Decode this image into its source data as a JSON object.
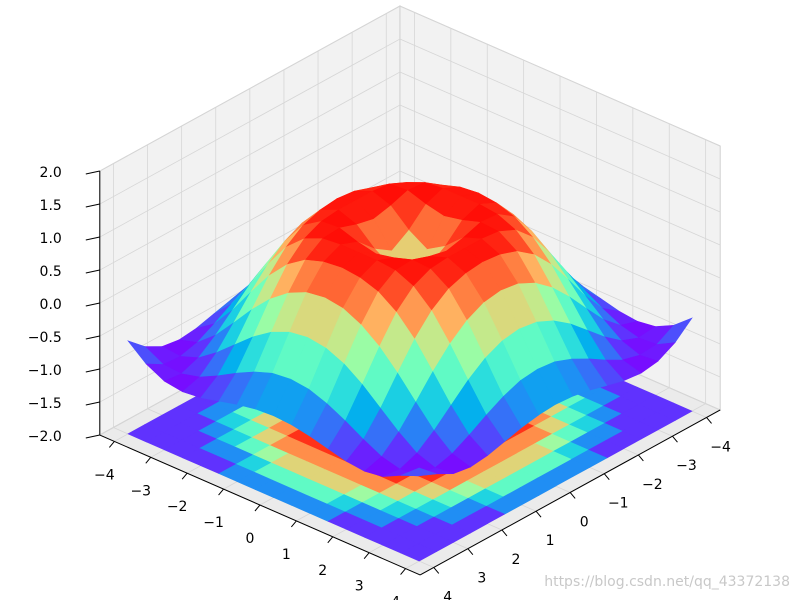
{
  "chart_data": {
    "type": "surface",
    "cmap": "rainbow",
    "grid": true,
    "contour_offset": -2,
    "x": [
      -4,
      -3.5,
      -3,
      -2.5,
      -2,
      -1.5,
      -1,
      -0.5,
      0,
      0.5,
      1,
      1.5,
      2,
      2.5,
      3,
      3.5,
      4
    ],
    "y": [
      -4,
      -3.5,
      -3,
      -2.5,
      -2,
      -1.5,
      -1,
      -0.5,
      0,
      0.5,
      1,
      1.5,
      2,
      2.5,
      3,
      3.5,
      4
    ],
    "z": [
      [
        -0.59,
        -0.82,
        -0.96,
        -1.0,
        -0.97,
        -0.9,
        -0.83,
        -0.78,
        -0.76,
        -0.78,
        -0.83,
        -0.9,
        -0.97,
        -1.0,
        -0.96,
        -0.82,
        -0.59
      ],
      [
        -0.82,
        -0.97,
        -0.99,
        -0.92,
        -0.78,
        -0.62,
        -0.48,
        -0.38,
        -0.35,
        -0.38,
        -0.48,
        -0.62,
        -0.78,
        -0.92,
        -0.99,
        -0.97,
        -0.82
      ],
      [
        -0.96,
        -0.99,
        -0.89,
        -0.69,
        -0.45,
        -0.21,
        -0.02,
        0.1,
        0.14,
        0.1,
        -0.02,
        -0.21,
        -0.45,
        -0.69,
        -0.89,
        -0.99,
        -0.96
      ],
      [
        -1.0,
        -0.92,
        -0.69,
        -0.38,
        -0.06,
        0.22,
        0.43,
        0.56,
        0.6,
        0.56,
        0.43,
        0.22,
        -0.06,
        -0.38,
        -0.69,
        -0.92,
        -1.0
      ],
      [
        -0.97,
        -0.78,
        -0.45,
        -0.06,
        0.31,
        0.6,
        0.79,
        0.88,
        0.91,
        0.88,
        0.79,
        0.6,
        0.31,
        -0.06,
        -0.45,
        -0.78,
        -0.97
      ],
      [
        -0.9,
        -0.62,
        -0.21,
        0.22,
        0.6,
        0.85,
        0.97,
        1.0,
        1.0,
        1.0,
        0.97,
        0.85,
        0.6,
        0.22,
        -0.21,
        -0.62,
        -0.9
      ],
      [
        -0.83,
        -0.48,
        -0.02,
        0.43,
        0.79,
        0.97,
        0.99,
        0.9,
        0.84,
        0.9,
        0.99,
        0.97,
        0.79,
        0.43,
        -0.02,
        -0.48,
        -0.83
      ],
      [
        -0.78,
        -0.38,
        0.1,
        0.56,
        0.88,
        1.0,
        0.9,
        0.65,
        0.48,
        0.65,
        0.9,
        1.0,
        0.88,
        0.56,
        0.1,
        -0.38,
        -0.78
      ],
      [
        -0.76,
        -0.35,
        0.14,
        0.6,
        0.91,
        1.0,
        0.84,
        0.48,
        0,
        0.48,
        0.84,
        1.0,
        0.91,
        0.6,
        0.14,
        -0.35,
        -0.76
      ],
      [
        -0.78,
        -0.38,
        0.1,
        0.56,
        0.88,
        1.0,
        0.9,
        0.65,
        0.48,
        0.65,
        0.9,
        1.0,
        0.88,
        0.56,
        0.1,
        -0.38,
        -0.78
      ],
      [
        -0.83,
        -0.48,
        -0.02,
        0.43,
        0.79,
        0.97,
        0.99,
        0.9,
        0.84,
        0.9,
        0.99,
        0.97,
        0.79,
        0.43,
        -0.02,
        -0.48,
        -0.83
      ],
      [
        -0.9,
        -0.62,
        -0.21,
        0.22,
        0.6,
        0.85,
        0.97,
        1.0,
        1.0,
        1.0,
        0.97,
        0.85,
        0.6,
        0.22,
        -0.21,
        -0.62,
        -0.9
      ],
      [
        -0.97,
        -0.78,
        -0.45,
        -0.06,
        0.31,
        0.6,
        0.79,
        0.88,
        0.91,
        0.88,
        0.79,
        0.6,
        0.31,
        -0.06,
        -0.45,
        -0.78,
        -0.97
      ],
      [
        -1.0,
        -0.92,
        -0.69,
        -0.38,
        -0.06,
        0.22,
        0.43,
        0.56,
        0.6,
        0.56,
        0.43,
        0.22,
        -0.06,
        -0.38,
        -0.69,
        -0.92,
        -1.0
      ],
      [
        -0.96,
        -0.99,
        -0.89,
        -0.69,
        -0.45,
        -0.21,
        -0.02,
        0.1,
        0.14,
        0.1,
        -0.02,
        -0.21,
        -0.45,
        -0.69,
        -0.89,
        -0.99,
        -0.96
      ],
      [
        -0.82,
        -0.97,
        -0.99,
        -0.92,
        -0.78,
        -0.62,
        -0.48,
        -0.38,
        -0.35,
        -0.38,
        -0.48,
        -0.62,
        -0.78,
        -0.92,
        -0.99,
        -0.97,
        -0.82
      ],
      [
        -0.59,
        -0.82,
        -0.96,
        -1.0,
        -0.97,
        -0.9,
        -0.83,
        -0.78,
        -0.76,
        -0.78,
        -0.83,
        -0.9,
        -0.97,
        -1.0,
        -0.96,
        -0.82,
        -0.59
      ]
    ],
    "xlim": [
      -4.4,
      4.4
    ],
    "ylim": [
      -4.4,
      4.4
    ],
    "zlim": [
      -2,
      2
    ],
    "xticks": [
      {
        "value": -4,
        "label": "−4"
      },
      {
        "value": -3,
        "label": "−3"
      },
      {
        "value": -2,
        "label": "−2"
      },
      {
        "value": -1,
        "label": "−1"
      },
      0,
      1,
      2,
      3,
      4
    ],
    "yticks": [
      {
        "value": -4,
        "label": "−4"
      },
      {
        "value": -3,
        "label": "−3"
      },
      {
        "value": -2,
        "label": "−2"
      },
      {
        "value": -1,
        "label": "−1"
      },
      0,
      1,
      2,
      3,
      4
    ],
    "zticks": [
      {
        "value": -2,
        "label": "−2.0"
      },
      {
        "value": -1.5,
        "label": "−1.5"
      },
      {
        "value": -1,
        "label": "−1.0"
      },
      {
        "value": -0.5,
        "label": "−0.5"
      },
      {
        "value": 0,
        "label": "0.0"
      },
      {
        "value": 0.5,
        "label": "0.5"
      },
      {
        "value": 1,
        "label": "1.0"
      },
      {
        "value": 1.5,
        "label": "1.5"
      },
      {
        "value": 2,
        "label": "2.0"
      }
    ]
  },
  "watermark": "https://blog.csdn.net/qq_43372138"
}
